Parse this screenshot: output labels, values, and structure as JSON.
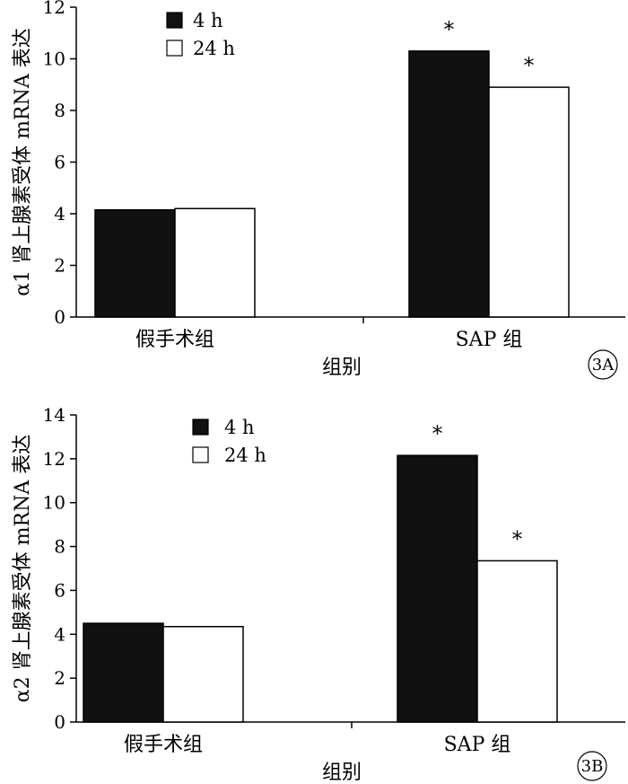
{
  "colors": {
    "series_4h": "#111111",
    "series_24h": "#ffffff",
    "outline": "#000000"
  },
  "chart_data": [
    {
      "type": "bar",
      "panel_label": "3A",
      "categories": [
        "假手术组",
        "SAP 组"
      ],
      "series": [
        {
          "name": "4 h",
          "values": [
            4.15,
            10.3
          ]
        },
        {
          "name": "24 h",
          "values": [
            4.2,
            8.9
          ]
        }
      ],
      "significance": [
        [
          "",
          "*"
        ],
        [
          "",
          "*"
        ]
      ],
      "significance_mark": "*",
      "xlabel": "组别",
      "ylabel": "α1 肾上腺素受体 mRNA 表达",
      "ylim": [
        0,
        12
      ],
      "yticks": [
        0,
        2,
        4,
        6,
        8,
        10,
        12
      ],
      "legend_position": "top-left",
      "grid": false
    },
    {
      "type": "bar",
      "panel_label": "3B",
      "categories": [
        "假手术组",
        "SAP 组"
      ],
      "series": [
        {
          "name": "4 h",
          "values": [
            4.5,
            12.15
          ]
        },
        {
          "name": "24 h",
          "values": [
            4.35,
            7.35
          ]
        }
      ],
      "significance": [
        [
          "",
          "*"
        ],
        [
          "",
          "*"
        ]
      ],
      "significance_mark": "*",
      "xlabel": "组别",
      "ylabel": "α2 肾上腺素受体 mRNA 表达",
      "ylim": [
        0,
        14
      ],
      "yticks": [
        0,
        2,
        4,
        6,
        8,
        10,
        12,
        14
      ],
      "legend_position": "top-left",
      "grid": false
    }
  ]
}
